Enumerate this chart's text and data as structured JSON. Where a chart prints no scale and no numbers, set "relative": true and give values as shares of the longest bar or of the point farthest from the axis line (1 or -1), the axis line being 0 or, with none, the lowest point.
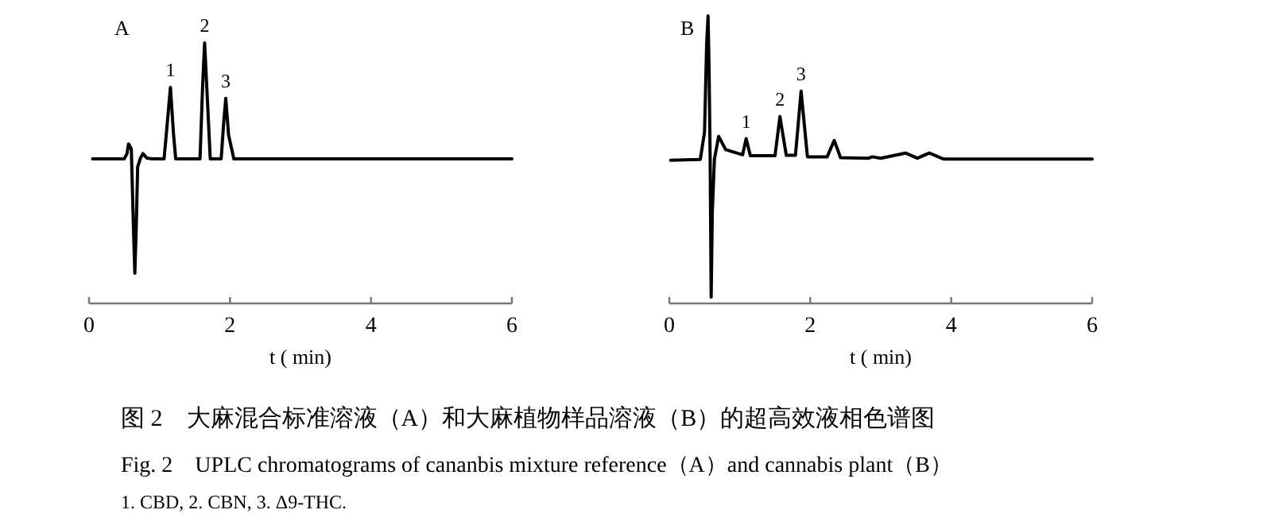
{
  "chart_data": [
    {
      "type": "line",
      "title": "A",
      "xlabel": "t ( min)",
      "relative": true,
      "xlim": [
        0,
        6
      ],
      "xticks": [
        0,
        2,
        4,
        6
      ],
      "grid": false,
      "marker": "none",
      "line_style": "solid",
      "series": [
        {
          "color": "#000000",
          "x": [
            0.05,
            0.5,
            0.54,
            0.56,
            0.6,
            0.63,
            0.65,
            0.67,
            0.69,
            0.73,
            0.765,
            0.82,
            0.9,
            1.065,
            1.11,
            1.155,
            1.2,
            1.23,
            1.575,
            1.61,
            1.64,
            1.68,
            1.72,
            1.875,
            1.91,
            1.94,
            1.98,
            2.055,
            6.0
          ],
          "values": [
            0.555,
            0.555,
            0.576,
            0.612,
            0.593,
            0.293,
            0.116,
            0.293,
            0.524,
            0.558,
            0.575,
            0.558,
            0.555,
            0.555,
            0.691,
            0.829,
            0.646,
            0.555,
            0.555,
            0.823,
            1.0,
            0.779,
            0.555,
            0.555,
            0.691,
            0.787,
            0.646,
            0.555,
            0.555
          ]
        }
      ],
      "annotations": [
        {
          "text": "1",
          "x": 1.155,
          "y": 0.829
        },
        {
          "text": "2",
          "x": 1.64,
          "y": 1.0
        },
        {
          "text": "3",
          "x": 1.94,
          "y": 0.787
        },
        "图 2　大麻混合标准溶液（A）和大麻植物样品溶液（B）的超高效液相色谱图",
        "Fig. 2　UPLC chromatograms of cananbis mixture reference（A）and cannabis plant（B）",
        "1. CBD, 2. CBN, 3. Δ9-THC."
      ]
    },
    {
      "type": "line",
      "title": "B",
      "xlabel": "t ( min)",
      "relative": true,
      "xlim": [
        0,
        6
      ],
      "xticks": [
        0,
        2,
        4,
        6
      ],
      "grid": false,
      "marker": "none",
      "line_style": "solid",
      "series": [
        {
          "color": "#000000",
          "x": [
            0.02,
            0.44,
            0.5,
            0.53,
            0.55,
            0.565,
            0.58,
            0.594,
            0.61,
            0.64,
            0.7,
            0.8,
            0.92,
            1.04,
            1.09,
            1.15,
            1.5,
            1.57,
            1.66,
            1.79,
            1.87,
            1.96,
            2.24,
            2.34,
            2.43,
            2.83,
            2.88,
            3.0,
            3.35,
            3.52,
            3.69,
            3.89,
            6.0
          ],
          "values": [
            0.498,
            0.501,
            0.596,
            0.902,
            1.0,
            0.804,
            0.501,
            0.022,
            0.315,
            0.501,
            0.581,
            0.535,
            0.526,
            0.517,
            0.573,
            0.514,
            0.514,
            0.65,
            0.515,
            0.515,
            0.738,
            0.51,
            0.51,
            0.567,
            0.507,
            0.505,
            0.51,
            0.505,
            0.523,
            0.505,
            0.523,
            0.502,
            0.502
          ]
        }
      ],
      "annotations": [
        {
          "text": "1",
          "x": 1.09,
          "y": 0.573
        },
        {
          "text": "2",
          "x": 1.57,
          "y": 0.65
        },
        {
          "text": "3",
          "x": 1.87,
          "y": 0.738
        }
      ]
    }
  ]
}
